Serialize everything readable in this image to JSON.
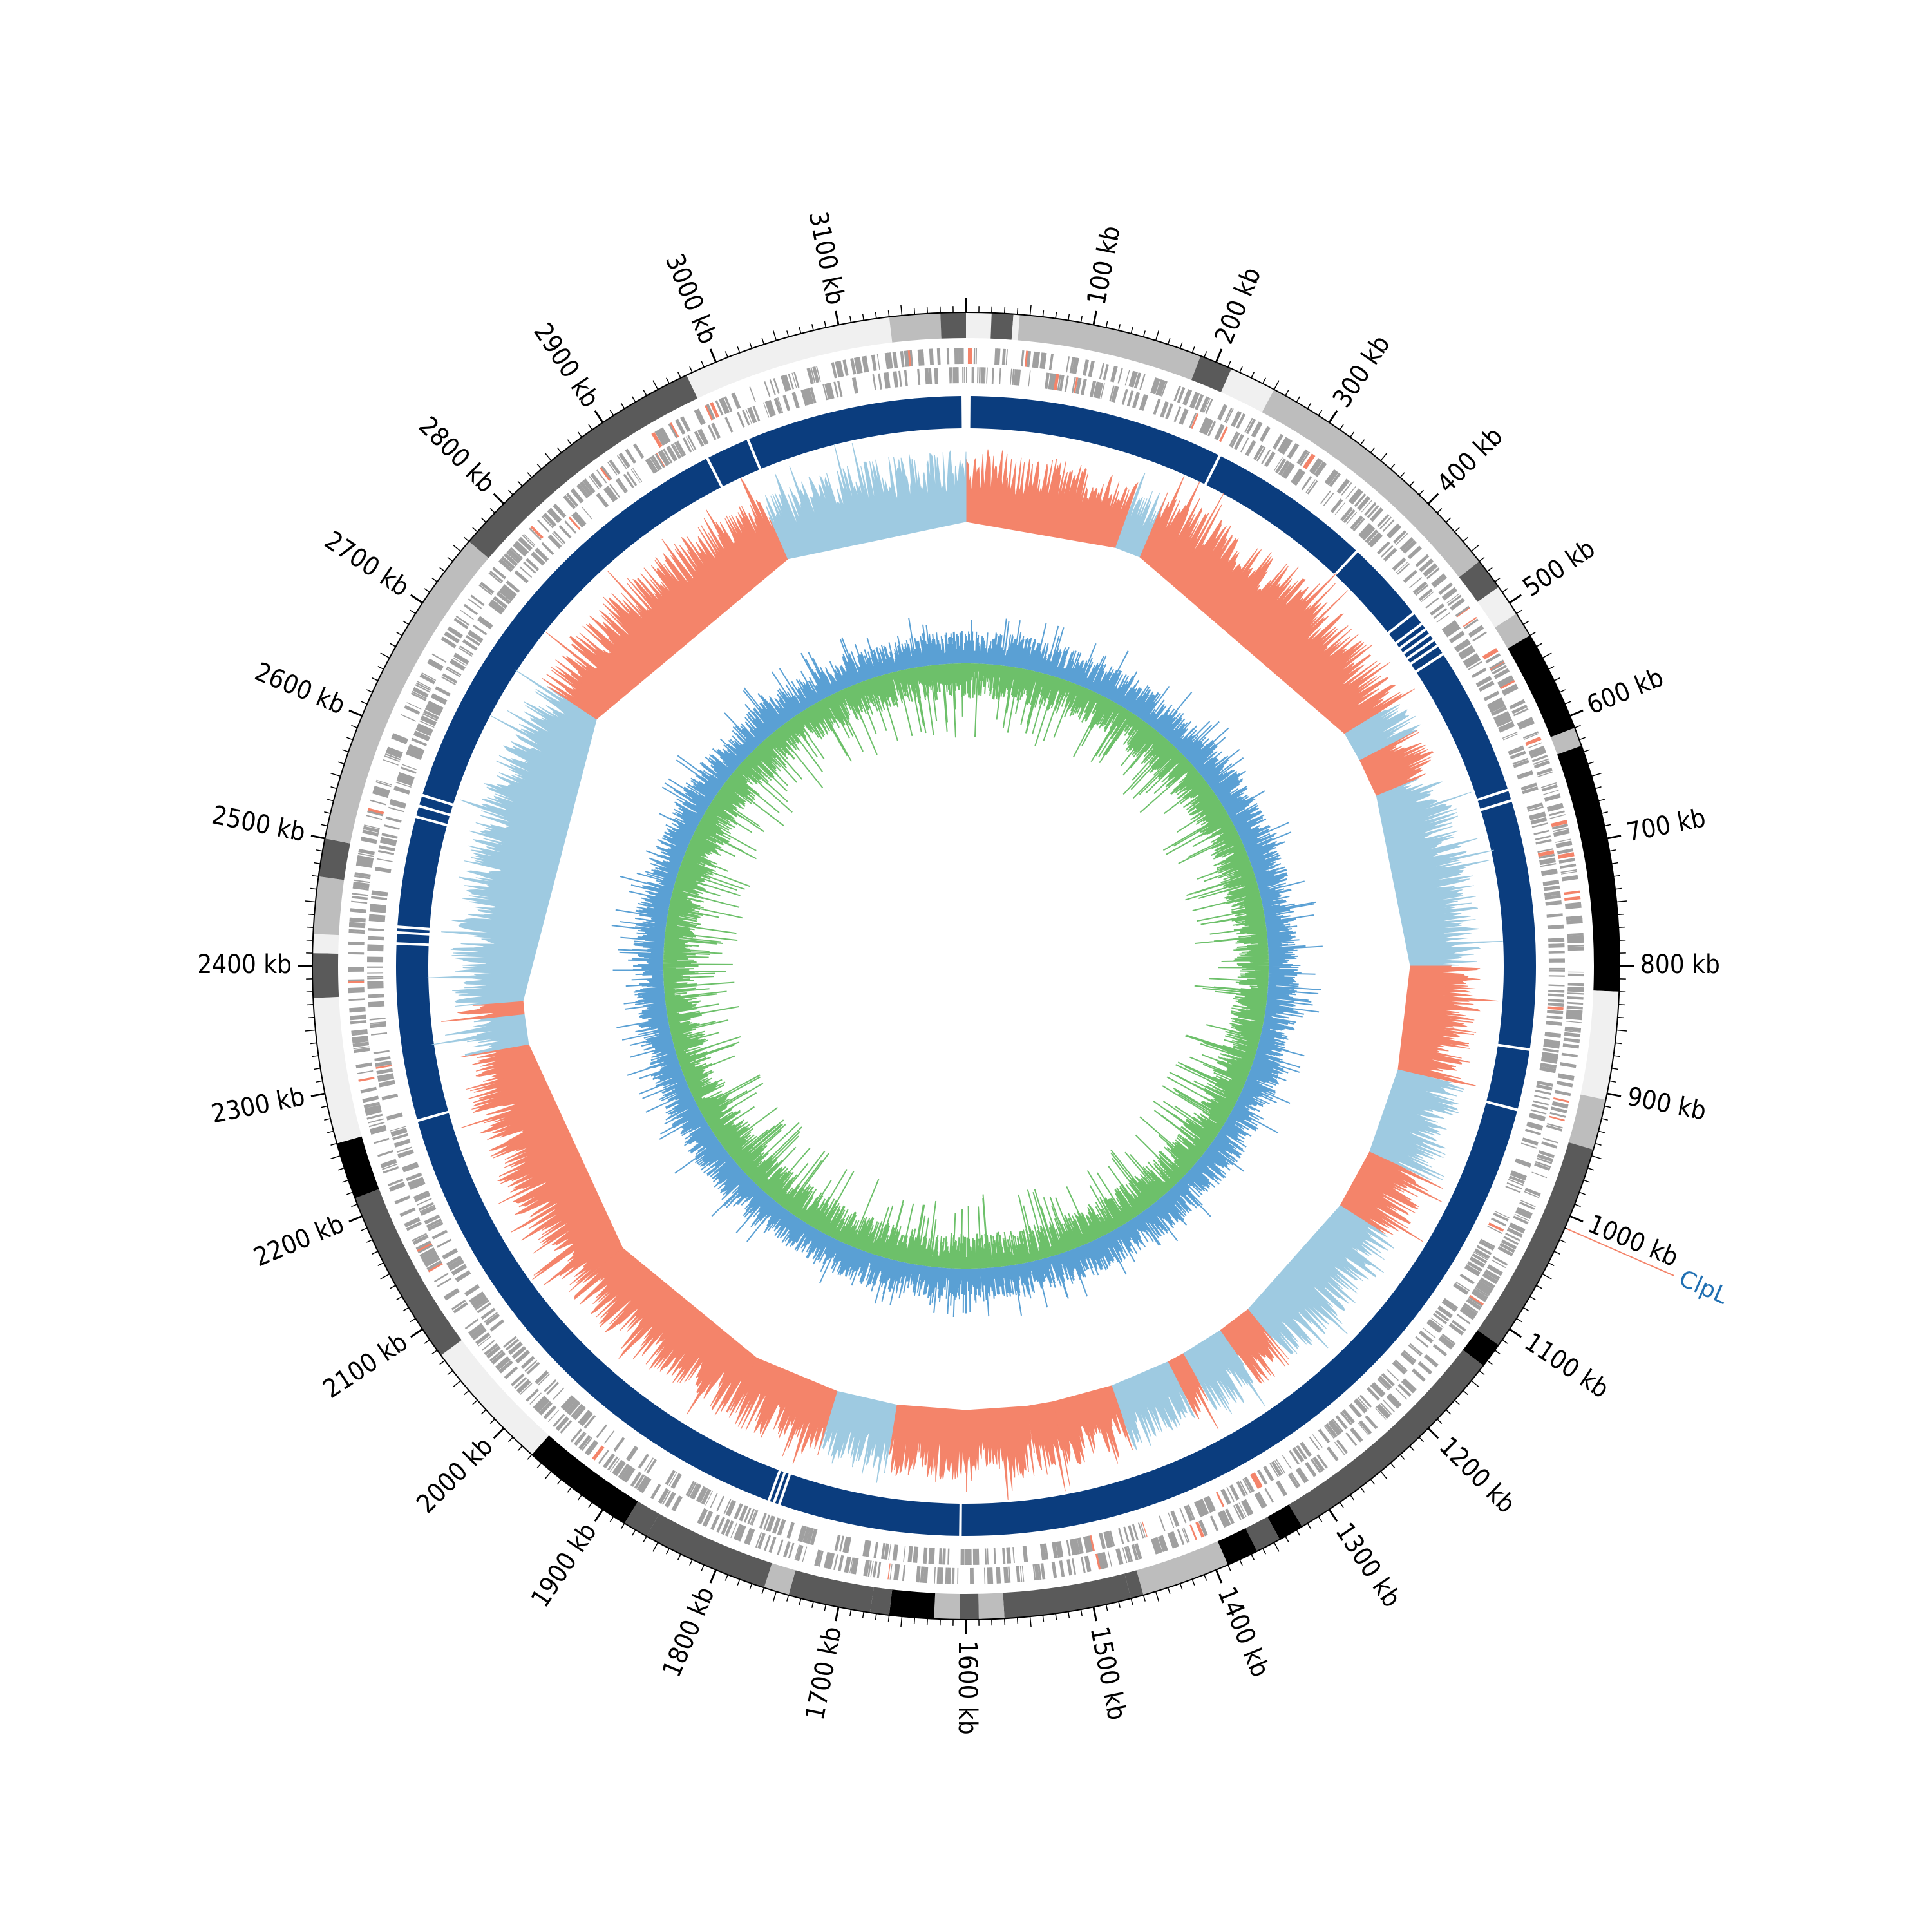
{
  "genome": {
    "length_kb": 3200,
    "tick_unit": "kb",
    "major_tick_labels": [
      "100 kb",
      "200 kb",
      "300 kb",
      "400 kb",
      "500 kb",
      "600 kb",
      "700 kb",
      "800 kb",
      "900 kb",
      "1000 kb",
      "1100 kb",
      "1200 kb",
      "1300 kb",
      "1400 kb",
      "1500 kb",
      "1600 kb",
      "1700 kb",
      "1800 kb",
      "1900 kb",
      "2000 kb",
      "2100 kb",
      "2200 kb",
      "2300 kb",
      "2400 kb",
      "2500 kb",
      "2600 kb",
      "2700 kb",
      "2800 kb",
      "2900 kb",
      "3000 kb",
      "3100 kb"
    ],
    "major_tick_positions_kb": [
      100,
      200,
      300,
      400,
      500,
      600,
      700,
      800,
      900,
      1000,
      1100,
      1200,
      1300,
      1400,
      1500,
      1600,
      1700,
      1800,
      1900,
      2000,
      2100,
      2200,
      2300,
      2400,
      2500,
      2600,
      2700,
      2800,
      2900,
      3000,
      3100
    ]
  },
  "annotation": {
    "label": "ClpL",
    "position_kb": 1010,
    "line_color": "#f4846a",
    "text_color": "#1f6fb2"
  },
  "tracks": {
    "ideogram": {
      "segments": [
        {
          "start": 0,
          "end": 20,
          "shade": "#f0f0f0"
        },
        {
          "start": 20,
          "end": 37,
          "shade": "#5a5a5a"
        },
        {
          "start": 37,
          "end": 42,
          "shade": "#f0f0f0"
        },
        {
          "start": 42,
          "end": 187,
          "shade": "#bdbdbd"
        },
        {
          "start": 187,
          "end": 213,
          "shade": "#5a5a5a"
        },
        {
          "start": 213,
          "end": 250,
          "shade": "#f0f0f0"
        },
        {
          "start": 250,
          "end": 460,
          "shade": "#bdbdbd"
        },
        {
          "start": 460,
          "end": 485,
          "shade": "#5a5a5a"
        },
        {
          "start": 485,
          "end": 510,
          "shade": "#f0f0f0"
        },
        {
          "start": 510,
          "end": 530,
          "shade": "#bdbdbd"
        },
        {
          "start": 530,
          "end": 610,
          "shade": "#000000"
        },
        {
          "start": 610,
          "end": 625,
          "shade": "#bdbdbd"
        },
        {
          "start": 625,
          "end": 820,
          "shade": "#000000"
        },
        {
          "start": 820,
          "end": 905,
          "shade": "#f0f0f0"
        },
        {
          "start": 905,
          "end": 945,
          "shade": "#bdbdbd"
        },
        {
          "start": 945,
          "end": 1115,
          "shade": "#5a5a5a"
        },
        {
          "start": 1115,
          "end": 1135,
          "shade": "#000000"
        },
        {
          "start": 1135,
          "end": 1325,
          "shade": "#5a5a5a"
        },
        {
          "start": 1325,
          "end": 1345,
          "shade": "#000000"
        },
        {
          "start": 1345,
          "end": 1365,
          "shade": "#5a5a5a"
        },
        {
          "start": 1365,
          "end": 1390,
          "shade": "#000000"
        },
        {
          "start": 1390,
          "end": 1460,
          "shade": "#bdbdbd"
        },
        {
          "start": 1460,
          "end": 1470,
          "shade": "#5a5a5a"
        },
        {
          "start": 1470,
          "end": 1570,
          "shade": "#5a5a5a"
        },
        {
          "start": 1570,
          "end": 1590,
          "shade": "#bdbdbd"
        },
        {
          "start": 1590,
          "end": 1605,
          "shade": "#5a5a5a"
        },
        {
          "start": 1605,
          "end": 1625,
          "shade": "#bdbdbd"
        },
        {
          "start": 1625,
          "end": 1660,
          "shade": "#000000"
        },
        {
          "start": 1660,
          "end": 1675,
          "shade": "#5a5a5a"
        },
        {
          "start": 1675,
          "end": 1740,
          "shade": "#5a5a5a"
        },
        {
          "start": 1740,
          "end": 1760,
          "shade": "#bdbdbd"
        },
        {
          "start": 1760,
          "end": 1860,
          "shade": "#5a5a5a"
        },
        {
          "start": 1860,
          "end": 1880,
          "shade": "#5a5a5a"
        },
        {
          "start": 1880,
          "end": 1970,
          "shade": "#000000"
        },
        {
          "start": 1970,
          "end": 2075,
          "shade": "#f0f0f0"
        },
        {
          "start": 2075,
          "end": 2215,
          "shade": "#5a5a5a"
        },
        {
          "start": 2215,
          "end": 2260,
          "shade": "#000000"
        },
        {
          "start": 2260,
          "end": 2375,
          "shade": "#f0f0f0"
        },
        {
          "start": 2375,
          "end": 2410,
          "shade": "#5a5a5a"
        },
        {
          "start": 2410,
          "end": 2425,
          "shade": "#f0f0f0"
        },
        {
          "start": 2425,
          "end": 2470,
          "shade": "#bdbdbd"
        },
        {
          "start": 2470,
          "end": 2500,
          "shade": "#5a5a5a"
        },
        {
          "start": 2500,
          "end": 2760,
          "shade": "#bdbdbd"
        },
        {
          "start": 2760,
          "end": 2975,
          "shade": "#5a5a5a"
        },
        {
          "start": 2975,
          "end": 3140,
          "shade": "#f0f0f0"
        },
        {
          "start": 3140,
          "end": 3180,
          "shade": "#bdbdbd"
        },
        {
          "start": 3180,
          "end": 3200,
          "shade": "#5a5a5a"
        }
      ]
    },
    "genes": {
      "color": "#a0a0a0",
      "highlight_color": "#f4846a"
    },
    "contigs": {
      "color": "#0b3d7e",
      "gaps_kb": [
        235,
        385,
        460,
        472,
        478,
        484,
        490,
        496,
        505,
        640,
        650,
        875,
        930,
        2960,
        3000,
        2420,
        2430,
        2435,
        2535,
        2545,
        2555,
        2260,
        1770,
        1775,
        1780,
        1605
      ]
    },
    "gc_skew": {
      "positive_color": "#f4846a",
      "negative_color": "#9ecae1",
      "blocks": [
        {
          "start": 0,
          "end": 175,
          "sign": 1
        },
        {
          "start": 175,
          "end": 205,
          "sign": -1
        },
        {
          "start": 205,
          "end": 520,
          "sign": 1
        },
        {
          "start": 520,
          "end": 555,
          "sign": -1
        },
        {
          "start": 555,
          "end": 600,
          "sign": 1
        },
        {
          "start": 600,
          "end": 800,
          "sign": -1
        },
        {
          "start": 800,
          "end": 920,
          "sign": 1
        },
        {
          "start": 920,
          "end": 1020,
          "sign": -1
        },
        {
          "start": 1020,
          "end": 1090,
          "sign": 1
        },
        {
          "start": 1090,
          "end": 1250,
          "sign": -1
        },
        {
          "start": 1250,
          "end": 1290,
          "sign": 1
        },
        {
          "start": 1290,
          "end": 1340,
          "sign": -1
        },
        {
          "start": 1340,
          "end": 1360,
          "sign": 1
        },
        {
          "start": 1360,
          "end": 1430,
          "sign": -1
        },
        {
          "start": 1430,
          "end": 1500,
          "sign": 1
        },
        {
          "start": 1500,
          "end": 1530,
          "sign": 1
        },
        {
          "start": 1530,
          "end": 1600,
          "sign": 1
        },
        {
          "start": 1600,
          "end": 1680,
          "sign": 1
        },
        {
          "start": 1680,
          "end": 1750,
          "sign": -1
        },
        {
          "start": 1750,
          "end": 1850,
          "sign": 1
        },
        {
          "start": 1850,
          "end": 2050,
          "sign": 1
        },
        {
          "start": 2050,
          "end": 2310,
          "sign": 1
        },
        {
          "start": 2310,
          "end": 2345,
          "sign": -1
        },
        {
          "start": 2345,
          "end": 2360,
          "sign": 1
        },
        {
          "start": 2360,
          "end": 2700,
          "sign": -1
        },
        {
          "start": 2700,
          "end": 2990,
          "sign": 1
        },
        {
          "start": 2990,
          "end": 3200,
          "sign": -1
        }
      ]
    },
    "gc_content": {
      "outer_color": "#5aa0d4",
      "inner_color": "#6dc06a"
    }
  }
}
